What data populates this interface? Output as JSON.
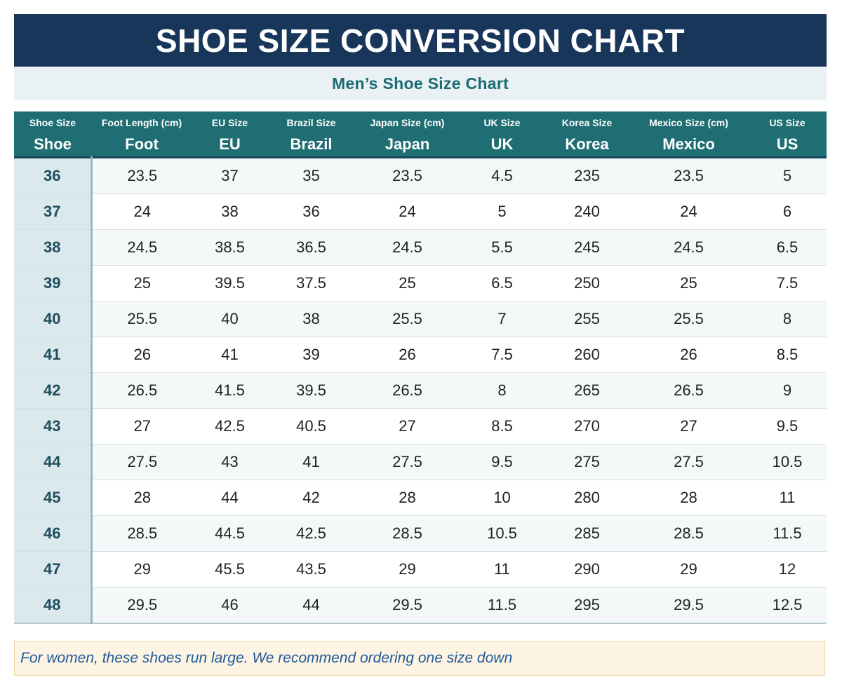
{
  "title": "SHOE SIZE CONVERSION CHART",
  "subtitle": "Men’s Shoe Size Chart",
  "columns": [
    {
      "label": "Shoe Size",
      "short": "Shoe"
    },
    {
      "label": "Foot Length (cm)",
      "short": "Foot"
    },
    {
      "label": "EU Size",
      "short": "EU"
    },
    {
      "label": "Brazil Size",
      "short": "Brazil"
    },
    {
      "label": "Japan Size (cm)",
      "short": "Japan"
    },
    {
      "label": "UK Size",
      "short": "UK"
    },
    {
      "label": "Korea Size",
      "short": "Korea"
    },
    {
      "label": "Mexico Size (cm)",
      "short": "Mexico"
    },
    {
      "label": "US Size",
      "short": "US"
    }
  ],
  "rows": [
    [
      "36",
      "23.5",
      "37",
      "35",
      "23.5",
      "4.5",
      "235",
      "23.5",
      "5"
    ],
    [
      "37",
      "24",
      "38",
      "36",
      "24",
      "5",
      "240",
      "24",
      "6"
    ],
    [
      "38",
      "24.5",
      "38.5",
      "36.5",
      "24.5",
      "5.5",
      "245",
      "24.5",
      "6.5"
    ],
    [
      "39",
      "25",
      "39.5",
      "37.5",
      "25",
      "6.5",
      "250",
      "25",
      "7.5"
    ],
    [
      "40",
      "25.5",
      "40",
      "38",
      "25.5",
      "7",
      "255",
      "25.5",
      "8"
    ],
    [
      "41",
      "26",
      "41",
      "39",
      "26",
      "7.5",
      "260",
      "26",
      "8.5"
    ],
    [
      "42",
      "26.5",
      "41.5",
      "39.5",
      "26.5",
      "8",
      "265",
      "26.5",
      "9"
    ],
    [
      "43",
      "27",
      "42.5",
      "40.5",
      "27",
      "8.5",
      "270",
      "27",
      "9.5"
    ],
    [
      "44",
      "27.5",
      "43",
      "41",
      "27.5",
      "9.5",
      "275",
      "27.5",
      "10.5"
    ],
    [
      "45",
      "28",
      "44",
      "42",
      "28",
      "10",
      "280",
      "28",
      "11"
    ],
    [
      "46",
      "28.5",
      "44.5",
      "42.5",
      "28.5",
      "10.5",
      "285",
      "28.5",
      "11.5"
    ],
    [
      "47",
      "29",
      "45.5",
      "43.5",
      "29",
      "11",
      "290",
      "29",
      "12"
    ],
    [
      "48",
      "29.5",
      "46",
      "44",
      "29.5",
      "11.5",
      "295",
      "29.5",
      "12.5"
    ]
  ],
  "note": "For women, these shoes run large. We recommend ordering one size down",
  "colors": {
    "title_bg": "#17365a",
    "header_bg": "#1f6e73",
    "subtitle_text": "#1b6b74",
    "note_bg": "#fdf4e3",
    "note_text": "#1f5a9a"
  }
}
